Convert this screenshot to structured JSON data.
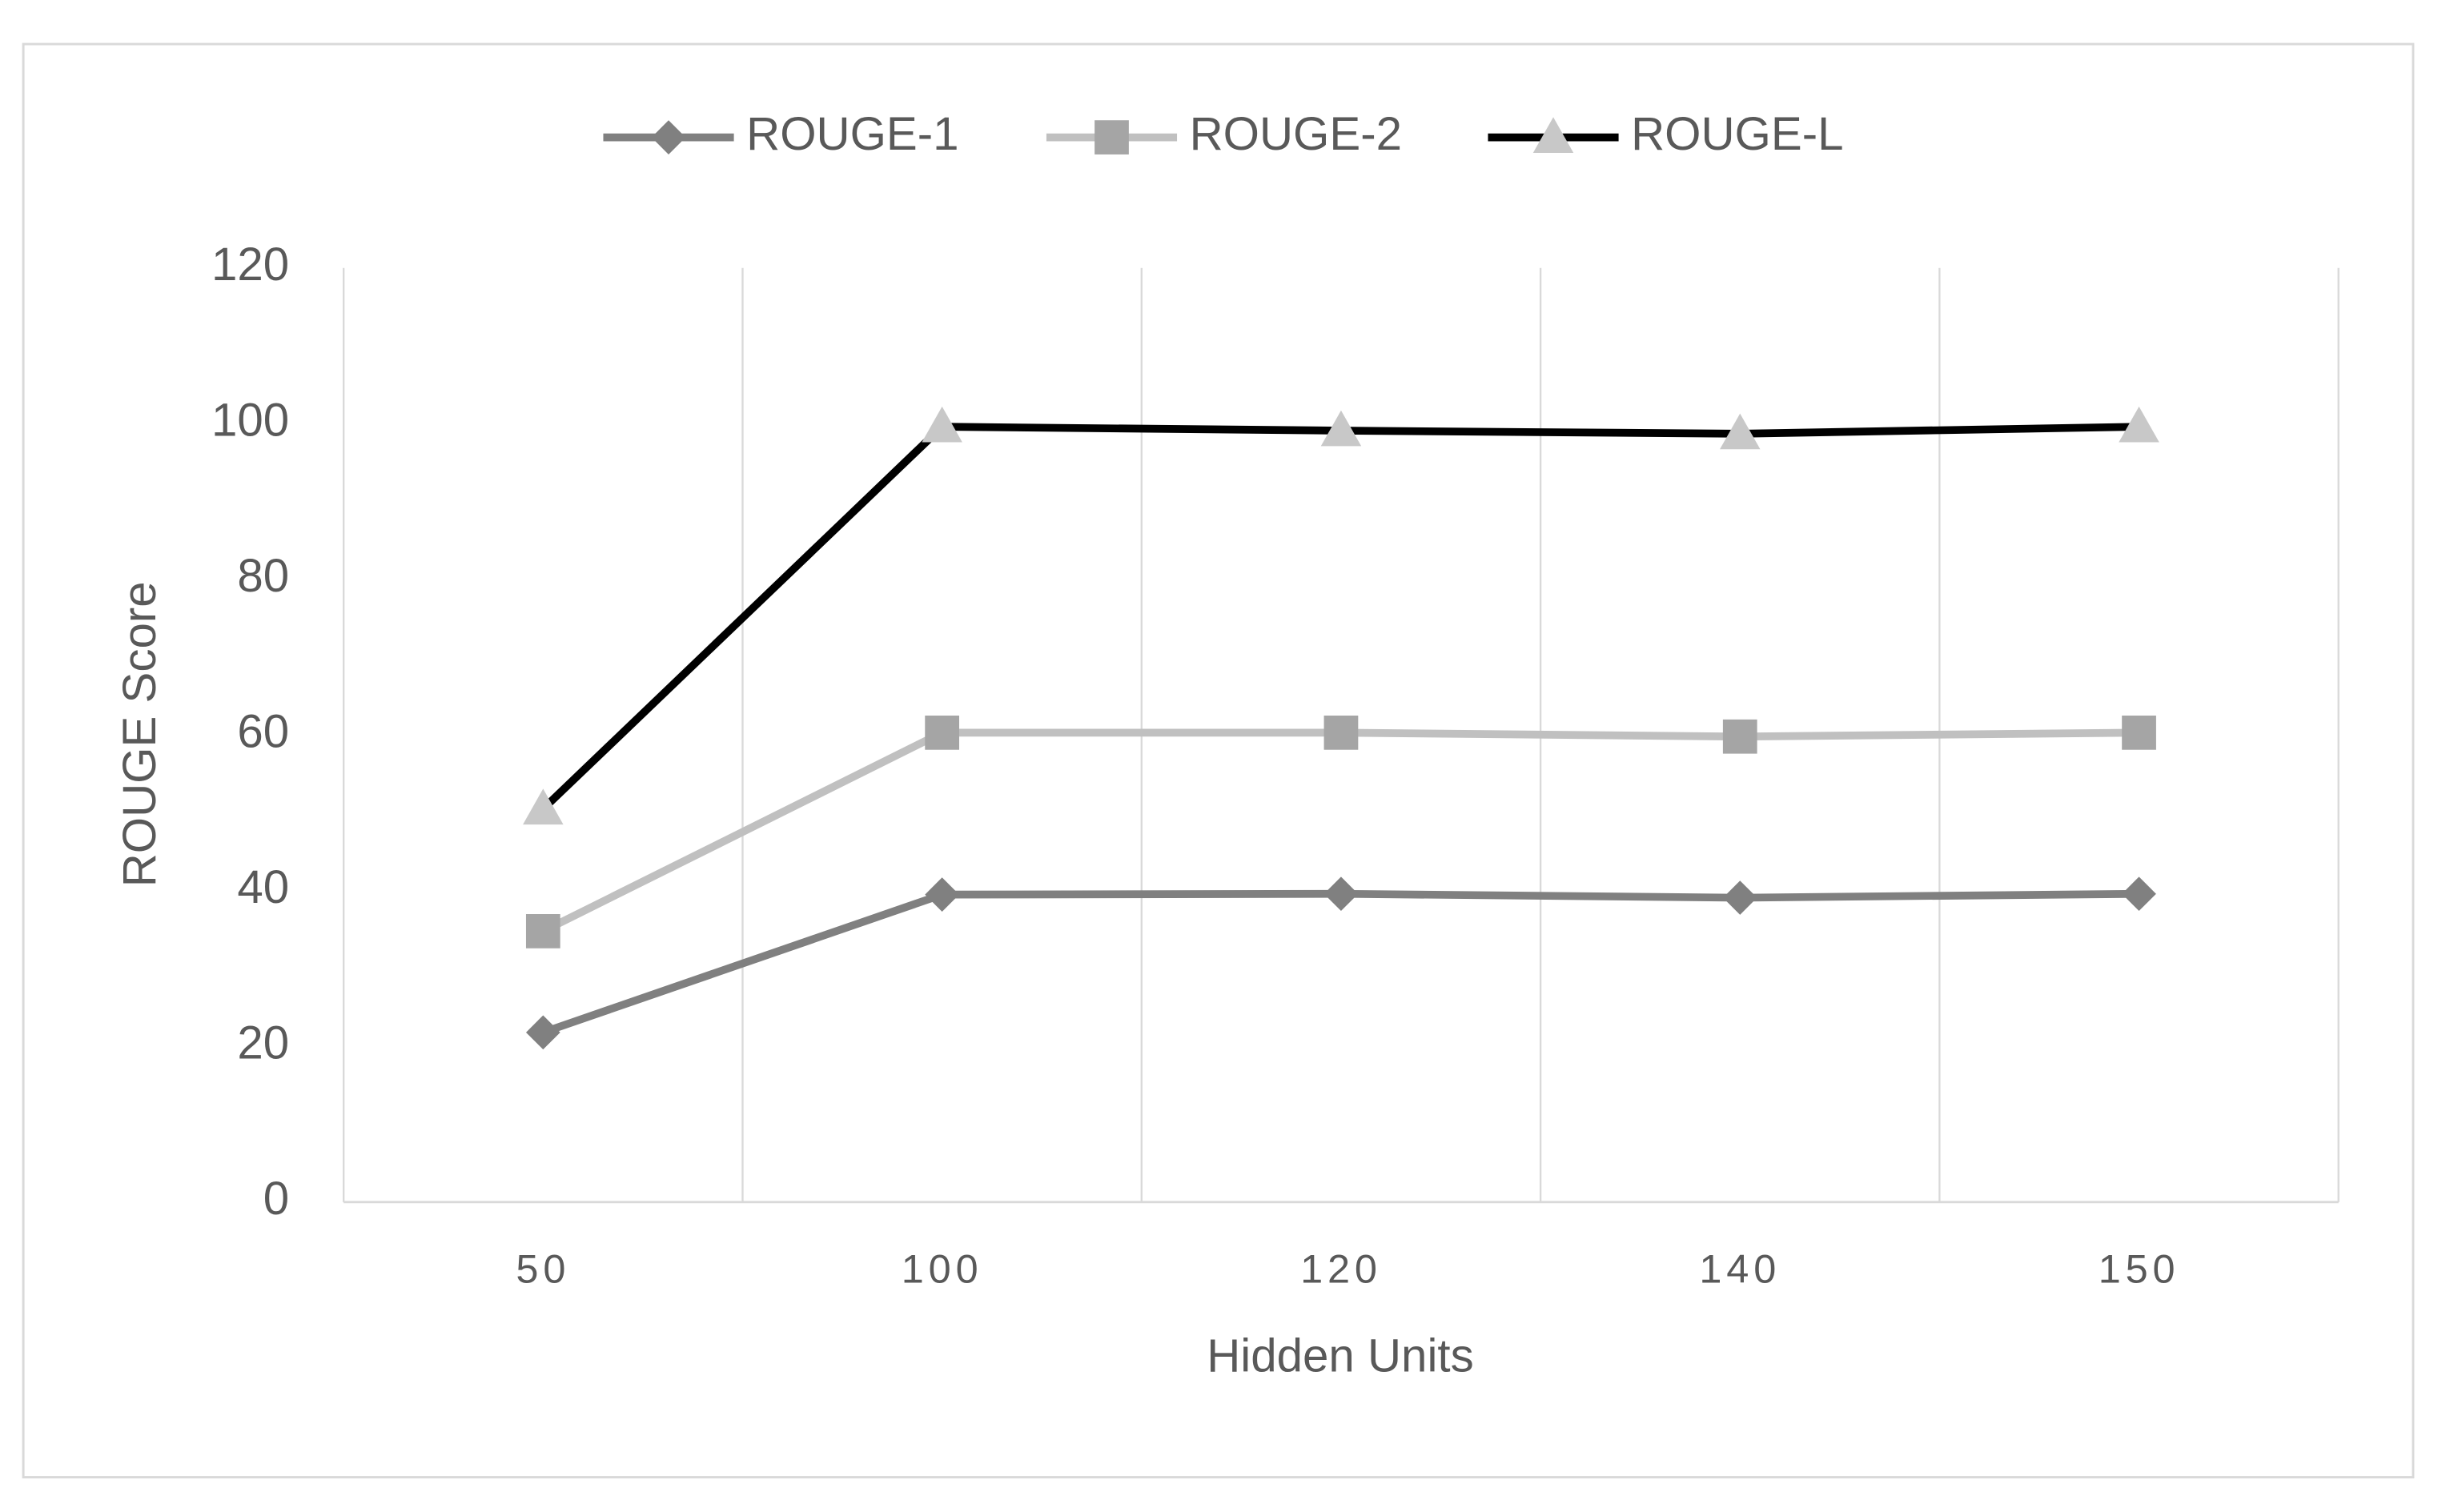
{
  "chart_data": {
    "type": "line",
    "x_label": "Hidden Units",
    "y_label": "ROUGE Score",
    "categories": [
      "50",
      "100",
      "120",
      "140",
      "150"
    ],
    "series": [
      {
        "name": "ROUGE-1",
        "color": "#808080",
        "marker": "diamond",
        "marker_color": "#808080",
        "values": [
          21.8,
          39.5,
          39.6,
          39.1,
          39.6
        ]
      },
      {
        "name": "ROUGE-2",
        "color": "#c0c0c0",
        "marker": "square",
        "marker_color": "#a5a5a5",
        "values": [
          34.8,
          60.3,
          60.3,
          59.8,
          60.3
        ]
      },
      {
        "name": "ROUGE-L",
        "color": "#000000",
        "marker": "triangle",
        "marker_color": "#c8c8c8",
        "values": [
          50.5,
          99.6,
          99.1,
          98.7,
          99.6
        ]
      }
    ],
    "ylim": [
      0,
      120
    ],
    "yticks": [
      0,
      20,
      40,
      60,
      80,
      100,
      120
    ],
    "grid": true,
    "legend": "top"
  }
}
